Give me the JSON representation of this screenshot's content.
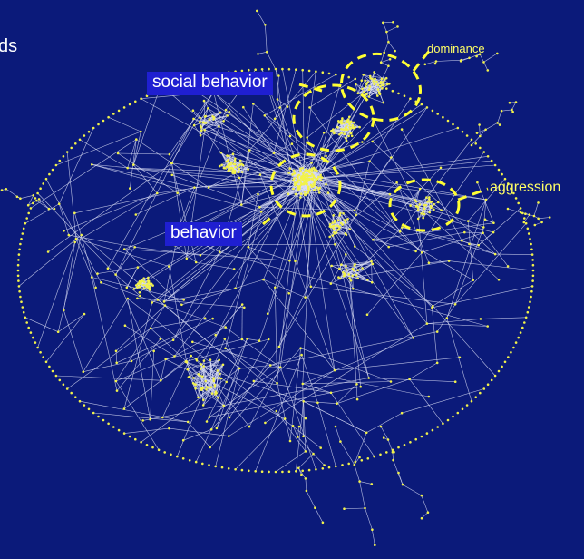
{
  "cut_text": "ds",
  "labels": {
    "social_behavior": "social behavior",
    "behavior": "behavior",
    "dominance": "dominance",
    "aggression": "aggression"
  },
  "colors": {
    "background": "#0b1a7a",
    "edges": "#d8dcf5",
    "nodes": "#f2f24a",
    "highlight": "#ffff33",
    "label_box": "#1f1fd1"
  }
}
